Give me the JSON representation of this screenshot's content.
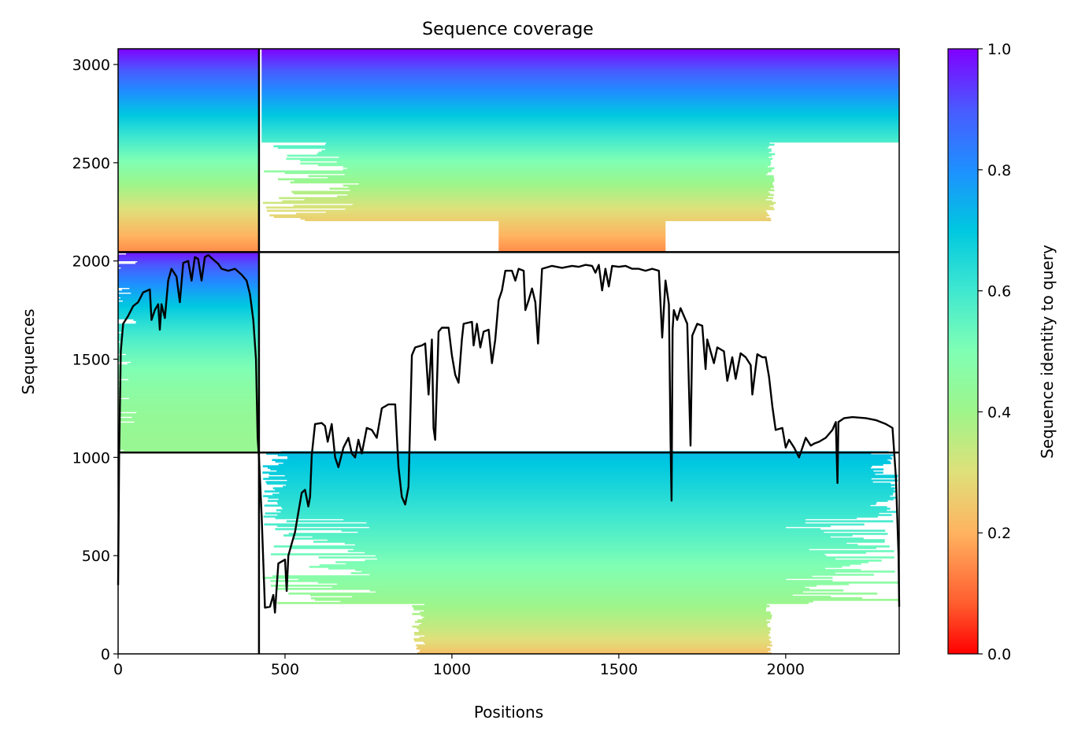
{
  "chart_data": {
    "type": "heatmap",
    "title": "Sequence coverage",
    "xlabel": "Positions",
    "ylabel": "Sequences",
    "xlim": [
      0,
      2340
    ],
    "ylim": [
      0,
      3080
    ],
    "xticks": [
      0,
      500,
      1000,
      1500,
      2000
    ],
    "yticks": [
      0,
      500,
      1000,
      1500,
      2000,
      2500,
      3000
    ],
    "colorbar": {
      "label": "Sequence identity to query",
      "range": [
        0.0,
        1.0
      ],
      "ticks": [
        0.0,
        0.2,
        0.4,
        0.6,
        0.8,
        1.0
      ],
      "colormap": "rainbow_r",
      "colors": [
        "#ff0000",
        "#ffb360",
        "#80ffb4",
        "#00b5eb",
        "#8000ff"
      ]
    },
    "block_divisions": {
      "positions": [
        422
      ],
      "sequences": [
        1025,
        2045
      ]
    },
    "coverage_line": {
      "color": "#000000",
      "points": [
        [
          0,
          350
        ],
        [
          3,
          1010
        ],
        [
          8,
          1540
        ],
        [
          15,
          1680
        ],
        [
          30,
          1720
        ],
        [
          45,
          1770
        ],
        [
          60,
          1790
        ],
        [
          75,
          1840
        ],
        [
          95,
          1855
        ],
        [
          100,
          1700
        ],
        [
          110,
          1750
        ],
        [
          120,
          1780
        ],
        [
          125,
          1650
        ],
        [
          130,
          1780
        ],
        [
          140,
          1710
        ],
        [
          150,
          1900
        ],
        [
          160,
          1960
        ],
        [
          175,
          1920
        ],
        [
          185,
          1790
        ],
        [
          195,
          1990
        ],
        [
          210,
          2000
        ],
        [
          220,
          1900
        ],
        [
          230,
          2020
        ],
        [
          240,
          2010
        ],
        [
          250,
          1900
        ],
        [
          260,
          2020
        ],
        [
          270,
          2030
        ],
        [
          280,
          2015
        ],
        [
          290,
          2000
        ],
        [
          300,
          1985
        ],
        [
          310,
          1960
        ],
        [
          330,
          1950
        ],
        [
          350,
          1960
        ],
        [
          370,
          1930
        ],
        [
          385,
          1900
        ],
        [
          395,
          1830
        ],
        [
          405,
          1700
        ],
        [
          413,
          1500
        ],
        [
          418,
          1100
        ],
        [
          422,
          1000
        ],
        [
          430,
          700
        ],
        [
          440,
          235
        ],
        [
          455,
          240
        ],
        [
          465,
          300
        ],
        [
          470,
          210
        ],
        [
          480,
          460
        ],
        [
          500,
          480
        ],
        [
          505,
          320
        ],
        [
          510,
          500
        ],
        [
          520,
          560
        ],
        [
          530,
          620
        ],
        [
          540,
          720
        ],
        [
          550,
          820
        ],
        [
          560,
          835
        ],
        [
          570,
          750
        ],
        [
          575,
          800
        ],
        [
          580,
          1010
        ],
        [
          590,
          1170
        ],
        [
          610,
          1175
        ],
        [
          620,
          1160
        ],
        [
          628,
          1080
        ],
        [
          640,
          1170
        ],
        [
          650,
          1000
        ],
        [
          660,
          950
        ],
        [
          675,
          1050
        ],
        [
          690,
          1100
        ],
        [
          700,
          1020
        ],
        [
          710,
          1000
        ],
        [
          720,
          1090
        ],
        [
          730,
          1020
        ],
        [
          745,
          1150
        ],
        [
          760,
          1140
        ],
        [
          775,
          1100
        ],
        [
          790,
          1250
        ],
        [
          810,
          1270
        ],
        [
          830,
          1270
        ],
        [
          840,
          950
        ],
        [
          850,
          800
        ],
        [
          860,
          760
        ],
        [
          870,
          850
        ],
        [
          880,
          1520
        ],
        [
          890,
          1560
        ],
        [
          910,
          1570
        ],
        [
          920,
          1580
        ],
        [
          930,
          1320
        ],
        [
          940,
          1600
        ],
        [
          945,
          1150
        ],
        [
          950,
          1090
        ],
        [
          960,
          1640
        ],
        [
          970,
          1660
        ],
        [
          990,
          1660
        ],
        [
          1000,
          1520
        ],
        [
          1010,
          1420
        ],
        [
          1020,
          1380
        ],
        [
          1030,
          1600
        ],
        [
          1035,
          1680
        ],
        [
          1060,
          1690
        ],
        [
          1065,
          1570
        ],
        [
          1075,
          1680
        ],
        [
          1085,
          1560
        ],
        [
          1095,
          1640
        ],
        [
          1110,
          1650
        ],
        [
          1120,
          1480
        ],
        [
          1130,
          1600
        ],
        [
          1140,
          1800
        ],
        [
          1150,
          1850
        ],
        [
          1160,
          1950
        ],
        [
          1180,
          1950
        ],
        [
          1190,
          1900
        ],
        [
          1200,
          1960
        ],
        [
          1215,
          1950
        ],
        [
          1220,
          1750
        ],
        [
          1230,
          1800
        ],
        [
          1240,
          1860
        ],
        [
          1250,
          1790
        ],
        [
          1258,
          1580
        ],
        [
          1270,
          1960
        ],
        [
          1300,
          1975
        ],
        [
          1330,
          1965
        ],
        [
          1360,
          1975
        ],
        [
          1380,
          1970
        ],
        [
          1400,
          1980
        ],
        [
          1420,
          1975
        ],
        [
          1430,
          1940
        ],
        [
          1440,
          1980
        ],
        [
          1450,
          1850
        ],
        [
          1460,
          1960
        ],
        [
          1470,
          1870
        ],
        [
          1480,
          1975
        ],
        [
          1500,
          1970
        ],
        [
          1520,
          1975
        ],
        [
          1540,
          1960
        ],
        [
          1560,
          1960
        ],
        [
          1580,
          1950
        ],
        [
          1600,
          1960
        ],
        [
          1620,
          1950
        ],
        [
          1630,
          1610
        ],
        [
          1640,
          1900
        ],
        [
          1650,
          1780
        ],
        [
          1655,
          1090
        ],
        [
          1658,
          780
        ],
        [
          1661,
          1650
        ],
        [
          1665,
          1750
        ],
        [
          1675,
          1700
        ],
        [
          1685,
          1760
        ],
        [
          1695,
          1720
        ],
        [
          1705,
          1680
        ],
        [
          1715,
          1060
        ],
        [
          1720,
          1620
        ],
        [
          1735,
          1680
        ],
        [
          1750,
          1670
        ],
        [
          1760,
          1450
        ],
        [
          1765,
          1600
        ],
        [
          1785,
          1480
        ],
        [
          1795,
          1560
        ],
        [
          1815,
          1540
        ],
        [
          1825,
          1390
        ],
        [
          1840,
          1510
        ],
        [
          1850,
          1400
        ],
        [
          1865,
          1530
        ],
        [
          1880,
          1510
        ],
        [
          1895,
          1470
        ],
        [
          1900,
          1320
        ],
        [
          1915,
          1525
        ],
        [
          1930,
          1510
        ],
        [
          1940,
          1510
        ],
        [
          1950,
          1410
        ],
        [
          1960,
          1260
        ],
        [
          1970,
          1140
        ],
        [
          1990,
          1150
        ],
        [
          2000,
          1050
        ],
        [
          2010,
          1090
        ],
        [
          2025,
          1050
        ],
        [
          2040,
          1000
        ],
        [
          2050,
          1050
        ],
        [
          2060,
          1100
        ],
        [
          2075,
          1060
        ],
        [
          2085,
          1070
        ],
        [
          2100,
          1080
        ],
        [
          2120,
          1100
        ],
        [
          2130,
          1120
        ],
        [
          2140,
          1140
        ],
        [
          2150,
          1180
        ],
        [
          2155,
          870
        ],
        [
          2158,
          1180
        ],
        [
          2175,
          1200
        ],
        [
          2200,
          1205
        ],
        [
          2240,
          1200
        ],
        [
          2270,
          1190
        ],
        [
          2300,
          1170
        ],
        [
          2320,
          1150
        ],
        [
          2330,
          900
        ],
        [
          2338,
          500
        ],
        [
          2340,
          240
        ]
      ]
    }
  }
}
